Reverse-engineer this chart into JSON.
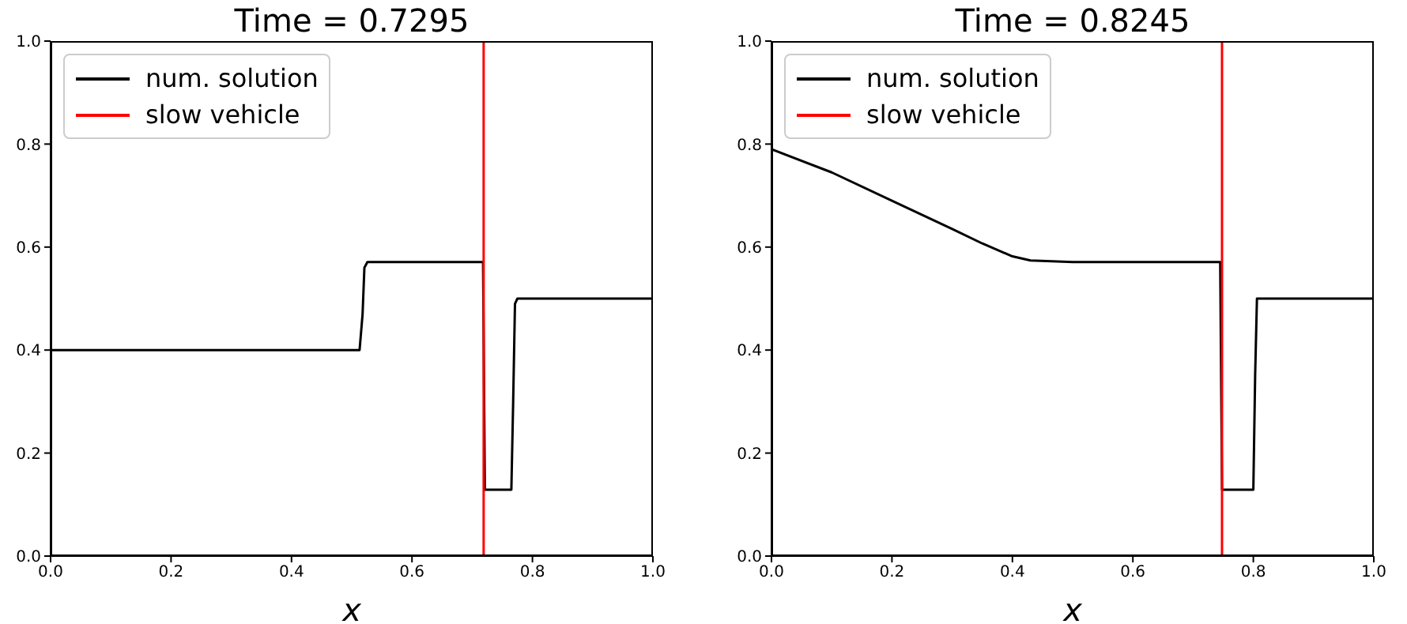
{
  "chart_data": [
    {
      "type": "line",
      "title": "Time = 0.7295",
      "xlabel": "x",
      "xlim": [
        0,
        1
      ],
      "ylim": [
        0,
        1
      ],
      "xticks": [
        {
          "value": 0,
          "label": "0.0"
        },
        {
          "value": 0.2,
          "label": "0.2"
        },
        {
          "value": 0.4,
          "label": "0.4"
        },
        {
          "value": 0.6,
          "label": "0.6"
        },
        {
          "value": 0.8,
          "label": "0.8"
        },
        {
          "value": 1,
          "label": "1.0"
        }
      ],
      "yticks": [
        {
          "value": 0,
          "label": "0.0"
        },
        {
          "value": 0.2,
          "label": "0.2"
        },
        {
          "value": 0.4,
          "label": "0.4"
        },
        {
          "value": 0.6,
          "label": "0.6"
        },
        {
          "value": 0.8,
          "label": "0.8"
        },
        {
          "value": 1,
          "label": "1.0"
        }
      ],
      "grid": false,
      "legend": "top left",
      "marker": "none",
      "line_style": "solid",
      "series": [
        {
          "name": "num. solution",
          "color": "#000000",
          "x": [
            0,
            0.513,
            0.518,
            0.521,
            0.526,
            0.718,
            0.721,
            0.765,
            0.768,
            0.771,
            0.775,
            1
          ],
          "values": [
            0.4,
            0.4,
            0.47,
            0.56,
            0.571,
            0.571,
            0.129,
            0.129,
            0.3,
            0.49,
            0.5,
            0.5
          ]
        },
        {
          "name": "slow vehicle",
          "color": "#ff0000",
          "x": [
            0.719,
            0.719
          ],
          "values": [
            0,
            1
          ]
        }
      ]
    },
    {
      "type": "line",
      "title": "Time = 0.8245",
      "xlabel": "x",
      "xlim": [
        0,
        1
      ],
      "ylim": [
        0,
        1
      ],
      "xticks": [
        {
          "value": 0,
          "label": "0.0"
        },
        {
          "value": 0.2,
          "label": "0.2"
        },
        {
          "value": 0.4,
          "label": "0.4"
        },
        {
          "value": 0.6,
          "label": "0.6"
        },
        {
          "value": 0.8,
          "label": "0.8"
        },
        {
          "value": 1,
          "label": "1.0"
        }
      ],
      "yticks": [
        {
          "value": 0,
          "label": "0.0"
        },
        {
          "value": 0.2,
          "label": "0.2"
        },
        {
          "value": 0.4,
          "label": "0.4"
        },
        {
          "value": 0.6,
          "label": "0.6"
        },
        {
          "value": 0.8,
          "label": "0.8"
        },
        {
          "value": 1,
          "label": "1.0"
        }
      ],
      "grid": false,
      "legend": "top left",
      "marker": "none",
      "line_style": "solid",
      "series": [
        {
          "name": "num. solution",
          "color": "#000000",
          "x": [
            0,
            0.1,
            0.2,
            0.3,
            0.35,
            0.4,
            0.43,
            0.5,
            0.745,
            0.748,
            0.8,
            0.803,
            0.806,
            1
          ],
          "values": [
            0.79,
            0.745,
            0.69,
            0.635,
            0.607,
            0.582,
            0.574,
            0.571,
            0.571,
            0.129,
            0.129,
            0.35,
            0.5,
            0.5
          ]
        },
        {
          "name": "slow vehicle",
          "color": "#ff0000",
          "x": [
            0.748,
            0.748
          ],
          "values": [
            0,
            1
          ]
        }
      ]
    }
  ]
}
